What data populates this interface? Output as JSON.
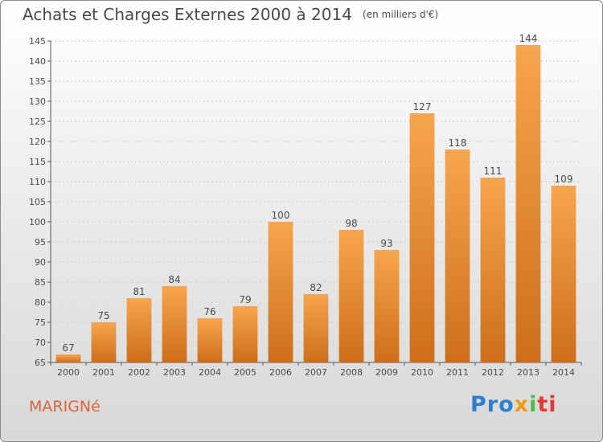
{
  "title": "Achats et Charges Externes 2000 à 2014",
  "unit": "(en milliers d'€)",
  "commune": "MARIGNé",
  "logo": [
    "Pro",
    "x",
    "i",
    "ti"
  ],
  "colors": {
    "bar_light": "#f7a54e",
    "bar_dark": "#cd6e1a",
    "text": "#4a4a4a",
    "commune": "#e0623c"
  },
  "chart_data": {
    "type": "bar",
    "categories": [
      "2000",
      "2001",
      "2002",
      "2003",
      "2004",
      "2005",
      "2006",
      "2007",
      "2008",
      "2009",
      "2010",
      "2011",
      "2012",
      "2013",
      "2014"
    ],
    "values": [
      67,
      75,
      81,
      84,
      76,
      79,
      100,
      82,
      98,
      93,
      127,
      118,
      111,
      144,
      109
    ],
    "ylim": [
      65,
      145
    ],
    "yticks": [
      65,
      70,
      75,
      80,
      85,
      90,
      95,
      100,
      105,
      110,
      115,
      120,
      125,
      130,
      135,
      140,
      145
    ],
    "grid": true,
    "title": "Achats et Charges Externes 2000 à 2014",
    "xlabel": "",
    "ylabel": ""
  }
}
